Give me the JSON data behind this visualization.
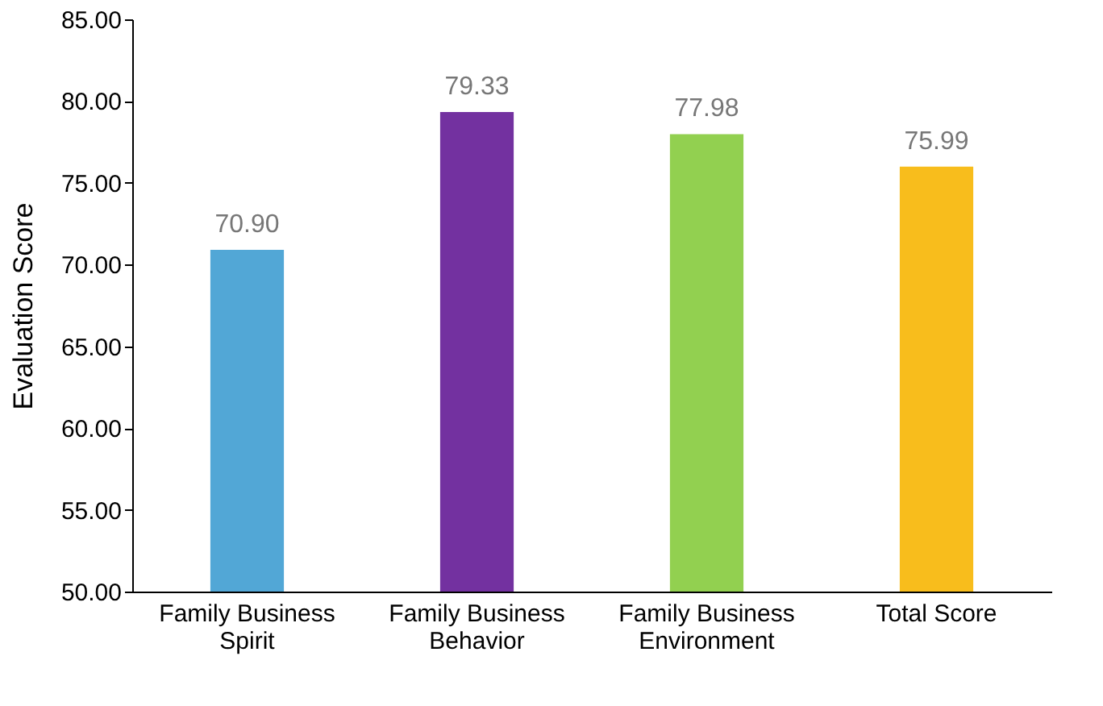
{
  "chart_data": {
    "type": "bar",
    "ylabel": "Evaluation Score",
    "categories": [
      "Family Business\nSpirit",
      "Family Business\nBehavior",
      "Family Business\nEnvironment",
      "Total Score"
    ],
    "values": [
      70.9,
      79.33,
      77.98,
      75.99
    ],
    "value_labels": [
      "70.90",
      "79.33",
      "77.98",
      "75.99"
    ],
    "colors": [
      "#52a7d6",
      "#7331a0",
      "#92d050",
      "#f8bd1c"
    ],
    "ylim": [
      50,
      85
    ],
    "yticks": [
      {
        "value": 50,
        "label": "50.00"
      },
      {
        "value": 55,
        "label": "55.00"
      },
      {
        "value": 60,
        "label": "60.00"
      },
      {
        "value": 65,
        "label": "65.00"
      },
      {
        "value": 70,
        "label": "70.00"
      },
      {
        "value": 75,
        "label": "75.00"
      },
      {
        "value": 80,
        "label": "80.00"
      },
      {
        "value": 85,
        "label": "85.00"
      }
    ],
    "grid": false
  }
}
